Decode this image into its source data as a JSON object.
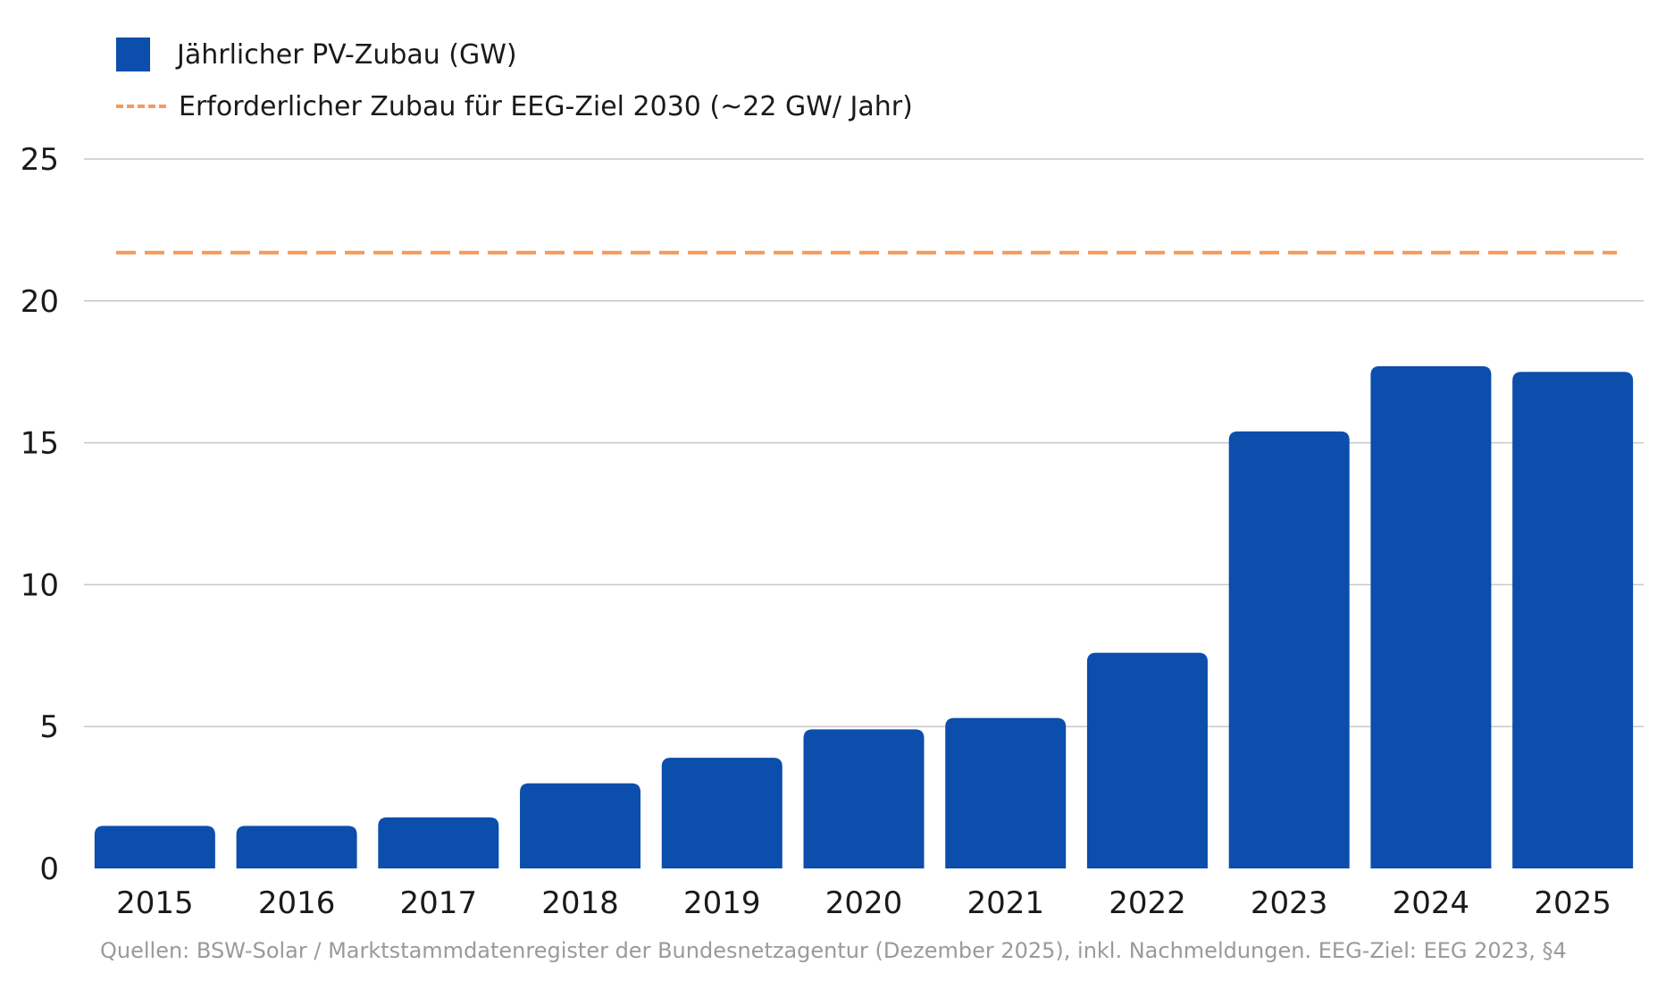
{
  "chart_data": {
    "type": "bar",
    "categories": [
      "2015",
      "2016",
      "2017",
      "2018",
      "2019",
      "2020",
      "2021",
      "2022",
      "2023",
      "2024",
      "2025"
    ],
    "series": [
      {
        "name": "Jährlicher PV-Zubau (GW)",
        "values": [
          1.5,
          1.5,
          1.8,
          3.0,
          3.9,
          4.9,
          5.3,
          7.6,
          15.4,
          17.7,
          17.5
        ],
        "color": "#0b4eac"
      }
    ],
    "reference_lines": [
      {
        "name": "Erforderlicher Zubau für EEG-Ziel 2030 (~22 GW/ Jahr)",
        "value": 21.7,
        "color": "#f59a5c",
        "style": "dashed"
      }
    ],
    "ylim": [
      0,
      25
    ],
    "yticks": [
      0,
      5,
      10,
      15,
      20,
      25
    ],
    "grid": true,
    "legend_position": "top-left",
    "title": "",
    "xlabel": "",
    "ylabel": ""
  },
  "footnote": "Quellen: BSW-Solar / Marktstammdatenregister der Bundesnetzagentur (Dezember 2025), inkl. Nachmeldungen. EEG-Ziel: EEG 2023, §4"
}
